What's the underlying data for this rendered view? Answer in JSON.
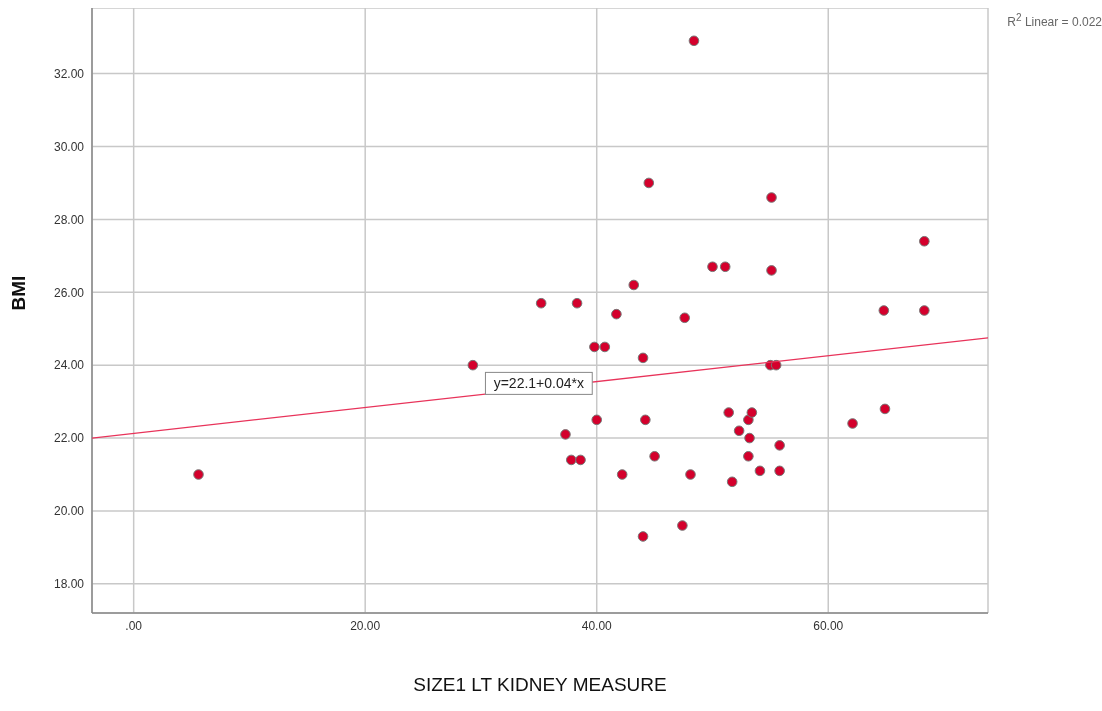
{
  "chart_data": {
    "type": "scatter",
    "xlabel": "SIZE1 LT KIDNEY MEASURE",
    "ylabel": "BMI",
    "xlim": [
      -3.6,
      73.8
    ],
    "ylim": [
      17.2,
      33.8
    ],
    "xticks": [
      {
        "value": 0,
        "label": ".00"
      },
      {
        "value": 20,
        "label": "20.00"
      },
      {
        "value": 40,
        "label": "40.00"
      },
      {
        "value": 60,
        "label": "60.00"
      }
    ],
    "yticks": [
      {
        "value": 18,
        "label": "18.00"
      },
      {
        "value": 20,
        "label": "20.00"
      },
      {
        "value": 22,
        "label": "22.00"
      },
      {
        "value": 24,
        "label": "24.00"
      },
      {
        "value": 26,
        "label": "26.00"
      },
      {
        "value": 28,
        "label": "28.00"
      },
      {
        "value": 30,
        "label": "30.00"
      },
      {
        "value": 32,
        "label": "32.00"
      }
    ],
    "grid": true,
    "marker": "circle",
    "annotations": [
      {
        "text": "y=22.1+0.04*x",
        "x": 35.0,
        "y": 23.5
      },
      "R$^{2}$ Linear = 0.022"
    ],
    "series": [
      {
        "color": "#d4002c",
        "x": [
          5.6,
          29.3,
          35.2,
          38.3,
          37.3,
          37.8,
          38.6,
          39.8,
          40.7,
          40.0,
          41.7,
          43.2,
          44.0,
          44.2,
          42.2,
          45.0,
          44.0,
          44.5,
          47.6,
          47.4,
          48.1,
          48.4,
          50.0,
          51.1,
          51.4,
          51.7,
          52.3,
          53.1,
          53.4,
          53.2,
          53.1,
          54.1,
          55.8,
          55.8,
          55.0,
          55.5,
          55.1,
          55.1,
          62.1,
          64.9,
          64.8,
          68.3,
          68.3
        ],
        "values": [
          21.0,
          24.0,
          25.7,
          25.7,
          22.1,
          21.4,
          21.4,
          24.5,
          24.5,
          22.5,
          25.4,
          26.2,
          24.2,
          22.5,
          21.0,
          21.5,
          19.3,
          29.0,
          25.3,
          19.6,
          21.0,
          32.9,
          26.7,
          26.7,
          22.7,
          20.8,
          22.2,
          22.5,
          22.7,
          22.0,
          21.5,
          21.1,
          21.8,
          21.1,
          24.0,
          24.0,
          28.6,
          26.6,
          22.4,
          22.8,
          25.5,
          25.5,
          27.4
        ]
      },
      {
        "type": "line",
        "marker": "none",
        "color": "#e8335a",
        "x": [
          -3.6,
          73.8
        ],
        "values": [
          22.0,
          24.75
        ]
      }
    ]
  }
}
